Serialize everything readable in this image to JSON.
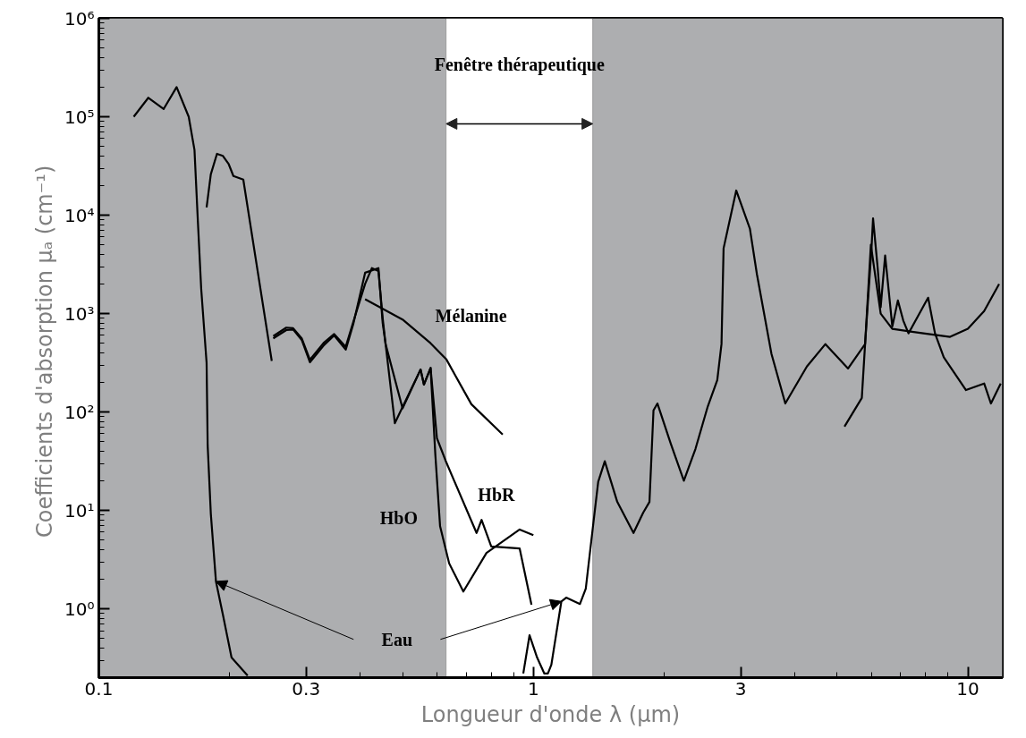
{
  "chart_data": {
    "type": "line",
    "xlabel": "Longueur d'onde λ (μm)",
    "ylabel": "Coefficients d'absorption  μₐ (cm⁻¹)",
    "log": "xy",
    "grid": false,
    "marker": "none",
    "line_style": "solid",
    "xlim": [
      0.1,
      12
    ],
    "ylim": [
      0.2,
      1000000
    ],
    "xticks": [
      0.1,
      0.3,
      1,
      3,
      10
    ],
    "yticks": [
      {
        "value": 1,
        "label": "10⁰"
      },
      {
        "value": 10,
        "label": "10¹"
      },
      {
        "value": 100,
        "label": "10²"
      },
      {
        "value": 1000,
        "label": "10³"
      },
      {
        "value": 10000,
        "label": "10⁴"
      },
      {
        "value": 100000,
        "label": "10⁵"
      },
      {
        "value": 1000000,
        "label": "10⁶"
      }
    ],
    "bands": [
      {
        "axis": "x",
        "from": 0.1,
        "to": 0.63,
        "color": "#adaeb0"
      },
      {
        "axis": "x",
        "from": 0.63,
        "to": 1.37,
        "label": "Fenêtre thérapeutique",
        "color": "#ffffff"
      },
      {
        "axis": "x",
        "from": 1.37,
        "to": 12,
        "color": "#adaeb0"
      }
    ],
    "series": [
      {
        "color": "#000000",
        "x": [
          0.1203,
          0.13,
          0.141,
          0.151,
          0.161,
          0.166,
          0.169,
          0.172,
          0.177,
          0.178,
          0.181,
          0.186,
          0.193,
          0.202,
          0.22,
          null,
          0.948,
          0.98,
          1.02,
          1.06,
          1.08,
          1.1,
          1.16,
          1.19,
          1.28,
          1.32,
          1.37,
          1.41,
          1.46,
          1.56,
          1.7,
          1.79,
          1.85,
          1.89,
          1.93,
          2.07,
          2.22,
          2.36,
          2.52,
          2.65,
          2.71,
          2.74,
          2.93,
          3.15,
          3.27,
          3.53,
          3.8,
          4.26,
          4.7,
          5.3,
          5.8,
          6.0,
          6.05,
          6.2,
          6.3,
          6.45,
          6.7,
          6.9,
          7.1,
          7.3,
          8.1,
          8.4,
          8.8,
          9.9,
          10.9,
          11.3,
          11.9
        ],
        "values": [
          100000,
          156000,
          120000,
          200000,
          100000,
          46000,
          8700,
          1800,
          316,
          46,
          9.3,
          1.9,
          0.87,
          0.32,
          0.21,
          null,
          0.22,
          0.54,
          0.32,
          0.22,
          0.22,
          0.27,
          1.19,
          1.3,
          1.12,
          1.6,
          6.6,
          19.5,
          31.6,
          12.2,
          5.9,
          9.5,
          12.2,
          104,
          122,
          48,
          20,
          42,
          114,
          211,
          490,
          4600,
          17800,
          7300,
          2500,
          393,
          122,
          290,
          490,
          277,
          490,
          4600,
          9300,
          2900,
          1160,
          3900,
          740,
          1360,
          850,
          630,
          1450,
          630,
          360,
          167,
          195,
          122,
          195
        ]
      },
      {
        "color": "#000000",
        "x": [
          0.177,
          0.181,
          0.187,
          0.193,
          0.199,
          0.204,
          0.215,
          0.232,
          0.25
        ],
        "values": [
          12000,
          26000,
          42000,
          40000,
          33000,
          25000,
          23000,
          2700,
          330
        ]
      },
      {
        "color": "#000000",
        "x": [
          0.252,
          0.27,
          0.28,
          0.293,
          0.306,
          0.33,
          0.348,
          0.37,
          0.385,
          0.41,
          0.44,
          0.45,
          0.457,
          0.5,
          0.55,
          0.56,
          0.58,
          0.595,
          0.61,
          0.64,
          0.69,
          0.78,
          0.93,
          1.0
        ],
        "values": [
          560,
          680,
          690,
          540,
          320,
          480,
          600,
          430,
          780,
          2600,
          2900,
          800,
          490,
          109,
          270,
          190,
          280,
          36,
          6.9,
          2.9,
          1.5,
          3.7,
          6.4,
          5.6
        ]
      },
      {
        "color": "#000000",
        "x": [
          0.252,
          0.27,
          0.28,
          0.293,
          0.306,
          0.33,
          0.348,
          0.37,
          0.385,
          0.41,
          0.425,
          0.44,
          0.45,
          0.457,
          0.48,
          0.55,
          0.56,
          0.58,
          0.6,
          0.63,
          0.74,
          0.76,
          0.8,
          0.93,
          0.99
        ],
        "values": [
          590,
          720,
          710,
          560,
          340,
          510,
          620,
          460,
          820,
          2000,
          2900,
          2700,
          900,
          490,
          77,
          270,
          190,
          280,
          54,
          31,
          5.9,
          8,
          4.3,
          4.1,
          1.1
        ]
      },
      {
        "color": "#000000",
        "x": [
          0.41,
          0.5,
          0.58,
          0.63,
          0.72,
          0.85
        ],
        "values": [
          1400,
          870,
          500,
          345,
          120,
          59
        ]
      },
      {
        "color": "#000000",
        "x": [
          5.2,
          5.7,
          5.8,
          5.98,
          6.1,
          6.3,
          6.7,
          7.9,
          9.1,
          10,
          10.9,
          11.8
        ],
        "values": [
          71,
          139,
          490,
          5000,
          2700,
          1000,
          700,
          630,
          580,
          700,
          1060,
          2000
        ]
      }
    ],
    "annotations": [
      "Mélanine",
      "HbO",
      "HbR",
      "Eau"
    ]
  }
}
